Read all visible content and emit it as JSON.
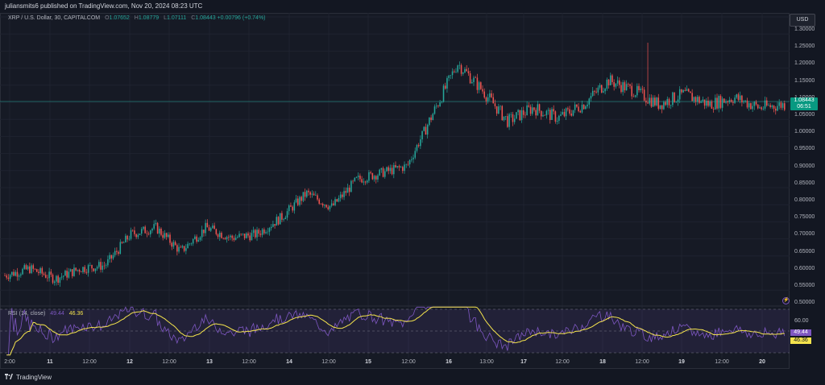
{
  "header": {
    "published_by": "juliansmits6 published on TradingView.com, Nov 20, 2024 08:23 UTC"
  },
  "legend": {
    "symbol": "XRP / U.S. Dollar, 30, CAPITALCOM",
    "open_label": "O",
    "open": "1.07652",
    "high_label": "H",
    "high": "1.08779",
    "low_label": "L",
    "low": "1.07111",
    "close_label": "C",
    "close": "1.08443",
    "change": "+0.00796 (+0.74%)"
  },
  "currency": "USD",
  "price_scale": [
    "1.30000",
    "1.25000",
    "1.20000",
    "1.15000",
    "1.10000",
    "1.05000",
    "1.00000",
    "0.95000",
    "0.90000",
    "0.85000",
    "0.80000",
    "0.75000",
    "0.70000",
    "0.65000",
    "0.60000",
    "0.55000",
    "0.50000"
  ],
  "last_price": {
    "value": "1.08443",
    "countdown": "06:51"
  },
  "rsi": {
    "label": "RSI (14, close)",
    "value": "49.44",
    "ma_value": "46.36",
    "scale": [
      "60.00"
    ],
    "tag_rsi": "49.44",
    "tag_ma": "46.36"
  },
  "time_axis": [
    "2:00",
    "11",
    "12:00",
    "12",
    "12:00",
    "13",
    "12:00",
    "14",
    "12:00",
    "15",
    "12:00",
    "16",
    "13:00",
    "17",
    "12:00",
    "18",
    "12:00",
    "19",
    "12:00",
    "20"
  ],
  "footer": {
    "brand": "TradingView"
  },
  "colors": {
    "up": "#26a69a",
    "down": "#ef5350",
    "rsi": "#7e57c2",
    "rsi_ma": "#f5e44d",
    "background": "#131722"
  },
  "icons": {
    "alert": "alert-icon",
    "logo": "tradingview-logo-icon"
  },
  "chart_data": {
    "type": "candlestick",
    "interval": "30",
    "ylim": [
      0.5,
      1.3
    ],
    "trend": [
      {
        "x": "10 20:00",
        "y": 0.58
      },
      {
        "x": "11 00:00",
        "y": 0.6
      },
      {
        "x": "11 12:00",
        "y": 0.57
      },
      {
        "x": "12 00:00",
        "y": 0.6
      },
      {
        "x": "12 12:00",
        "y": 0.61
      },
      {
        "x": "12 18:00",
        "y": 0.7
      },
      {
        "x": "13 00:00",
        "y": 0.72
      },
      {
        "x": "13 08:00",
        "y": 0.65
      },
      {
        "x": "13 18:00",
        "y": 0.72
      },
      {
        "x": "14 00:00",
        "y": 0.69
      },
      {
        "x": "14 12:00",
        "y": 0.7
      },
      {
        "x": "14 20:00",
        "y": 0.75
      },
      {
        "x": "15 00:00",
        "y": 0.82
      },
      {
        "x": "15 08:00",
        "y": 0.78
      },
      {
        "x": "15 18:00",
        "y": 0.86
      },
      {
        "x": "16 00:00",
        "y": 0.88
      },
      {
        "x": "16 08:00",
        "y": 0.9
      },
      {
        "x": "16 20:00",
        "y": 1.05
      },
      {
        "x": "17 00:00",
        "y": 1.2
      },
      {
        "x": "17 06:00",
        "y": 1.12
      },
      {
        "x": "17 12:00",
        "y": 1.03
      },
      {
        "x": "17 20:00",
        "y": 1.07
      },
      {
        "x": "18 00:00",
        "y": 1.04
      },
      {
        "x": "18 08:00",
        "y": 1.08
      },
      {
        "x": "18 12:00",
        "y": 1.15
      },
      {
        "x": "18 20:00",
        "y": 1.12
      },
      {
        "x": "19 04:00",
        "y": 1.08
      },
      {
        "x": "19 12:00",
        "y": 1.11
      },
      {
        "x": "19 20:00",
        "y": 1.08
      },
      {
        "x": "20 04:00",
        "y": 1.1
      },
      {
        "x": "20 12:00",
        "y": 1.07
      },
      {
        "x": "20 20:00",
        "y": 1.08
      }
    ],
    "spike_high": 1.26,
    "rsi_ylim": [
      30,
      70
    ]
  }
}
